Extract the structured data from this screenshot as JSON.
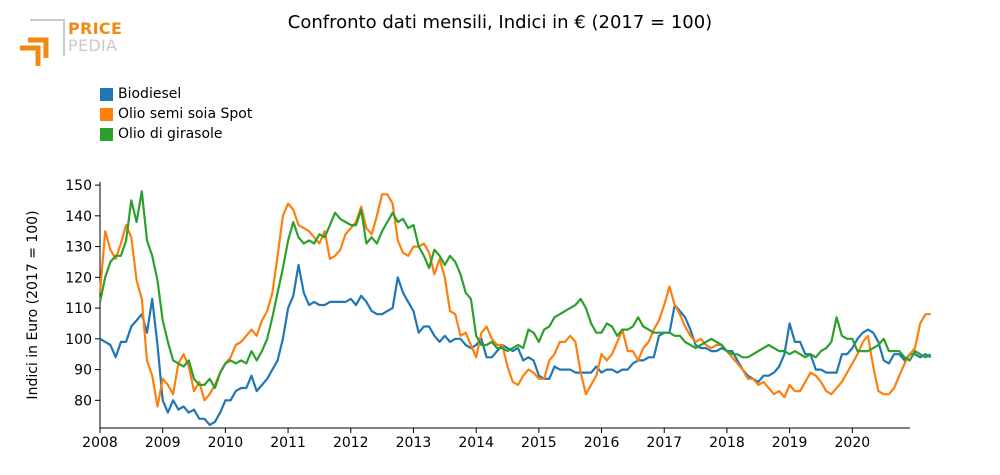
{
  "logo": {
    "line1": "PRICE",
    "line2": "PEDIA"
  },
  "chart_data": {
    "type": "line",
    "title": "Confronto dati mensili, Indici in € (2017 = 100)",
    "ylabel": "Indici in Euro (2017 = 100)",
    "xlabel": "",
    "xlim": [
      2008.0,
      2020.92
    ],
    "ylim": [
      71,
      151
    ],
    "x_start": 2008,
    "yticks": [
      80,
      90,
      100,
      110,
      120,
      130,
      140,
      150
    ],
    "xticks": [
      2008,
      2009,
      2010,
      2011,
      2012,
      2013,
      2014,
      2015,
      2016,
      2017,
      2018,
      2019,
      2020
    ],
    "legend_position": "top-left",
    "series": [
      {
        "name": "Biodiesel",
        "color": "#1f77b4",
        "values": [
          100,
          99,
          98,
          94,
          99,
          99,
          104,
          106,
          108,
          102,
          113,
          98,
          80,
          76,
          80,
          77,
          78,
          76,
          77,
          74,
          74,
          72,
          73,
          76,
          80,
          80,
          83,
          84,
          84,
          88,
          83,
          85,
          87,
          90,
          93,
          100,
          110,
          114,
          124,
          115,
          111,
          112,
          111,
          111,
          112,
          112,
          112,
          112,
          113,
          111,
          114,
          112,
          109,
          108,
          108,
          109,
          110,
          120,
          115,
          112,
          109,
          102,
          104,
          104,
          101,
          99,
          101,
          99,
          100,
          100,
          98,
          97,
          98,
          100,
          94,
          94,
          96,
          98,
          97,
          96,
          97,
          93,
          94,
          93,
          88,
          87,
          87,
          91,
          90,
          90,
          90,
          89,
          89,
          89,
          89,
          91,
          89,
          90,
          90,
          89,
          90,
          90,
          92,
          93,
          93,
          94,
          94,
          101,
          102,
          102,
          111,
          109,
          107,
          103,
          98,
          97,
          97,
          96,
          96,
          97,
          96,
          96,
          93,
          90,
          88,
          87,
          86,
          88,
          88,
          89,
          91,
          95,
          105,
          99,
          99,
          95,
          95,
          90,
          90,
          89,
          89,
          89,
          95,
          95,
          97,
          100,
          102,
          103,
          102,
          99,
          93,
          92,
          95,
          95,
          93,
          95,
          95,
          94,
          95,
          94
        ]
      },
      {
        "name": "Olio semi soia Spot",
        "color": "#ff7f0e",
        "values": [
          115,
          135,
          129,
          126,
          131,
          137,
          133,
          119,
          113,
          93,
          88,
          78,
          87,
          85,
          82,
          92,
          95,
          91,
          83,
          86,
          80,
          82,
          85,
          89,
          92,
          94,
          98,
          99,
          101,
          103,
          101,
          106,
          109,
          115,
          127,
          140,
          144,
          142,
          137,
          136,
          135,
          133,
          131,
          135,
          126,
          127,
          129,
          134,
          136,
          138,
          143,
          136,
          134,
          140,
          147,
          147,
          144,
          132,
          128,
          127,
          130,
          130,
          131,
          128,
          121,
          126,
          120,
          109,
          108,
          101,
          102,
          98,
          94,
          102,
          104,
          100,
          98,
          98,
          91,
          86,
          85,
          88,
          90,
          89,
          87,
          87,
          93,
          95,
          99,
          99,
          101,
          99,
          89,
          82,
          85,
          88,
          95,
          93,
          95,
          99,
          103,
          96,
          96,
          93,
          97,
          99,
          103,
          106,
          111,
          117,
          111,
          108,
          104,
          101,
          99,
          100,
          98,
          97,
          98,
          98,
          96,
          94,
          92,
          90,
          87,
          87,
          85,
          86,
          84,
          82,
          83,
          81,
          85,
          83,
          83,
          86,
          89,
          88,
          86,
          83,
          82,
          84,
          86,
          89,
          92,
          95,
          99,
          101,
          91,
          83,
          82,
          82,
          84,
          88,
          92,
          95,
          97,
          105,
          108,
          108
        ]
      },
      {
        "name": "Olio di girasole",
        "color": "#2ca02c",
        "values": [
          112,
          120,
          125,
          127,
          127,
          132,
          145,
          138,
          148,
          132,
          127,
          119,
          106,
          99,
          93,
          92,
          91,
          93,
          87,
          85,
          85,
          87,
          84,
          89,
          92,
          93,
          92,
          93,
          92,
          96,
          93,
          96,
          100,
          107,
          115,
          123,
          132,
          138,
          133,
          131,
          132,
          131,
          134,
          133,
          137,
          141,
          139,
          138,
          137,
          137,
          142,
          131,
          133,
          131,
          135,
          138,
          141,
          138,
          139,
          136,
          137,
          130,
          127,
          123,
          129,
          127,
          124,
          127,
          125,
          121,
          115,
          113,
          101,
          98,
          98,
          99,
          97,
          97,
          96,
          97,
          98,
          97,
          103,
          102,
          99,
          103,
          104,
          107,
          108,
          109,
          110,
          111,
          113,
          110,
          105,
          102,
          102,
          105,
          104,
          101,
          103,
          103,
          104,
          107,
          104,
          103,
          102,
          102,
          102,
          102,
          101,
          101,
          99,
          98,
          97,
          98,
          99,
          100,
          99,
          98,
          96,
          95,
          95,
          94,
          94,
          95,
          96,
          97,
          98,
          97,
          96,
          96,
          95,
          96,
          95,
          94,
          95,
          94,
          96,
          97,
          99,
          107,
          101,
          100,
          100,
          96,
          96,
          96,
          97,
          98,
          100,
          96,
          96,
          96,
          94,
          93,
          96,
          95,
          94,
          95
        ]
      }
    ]
  }
}
